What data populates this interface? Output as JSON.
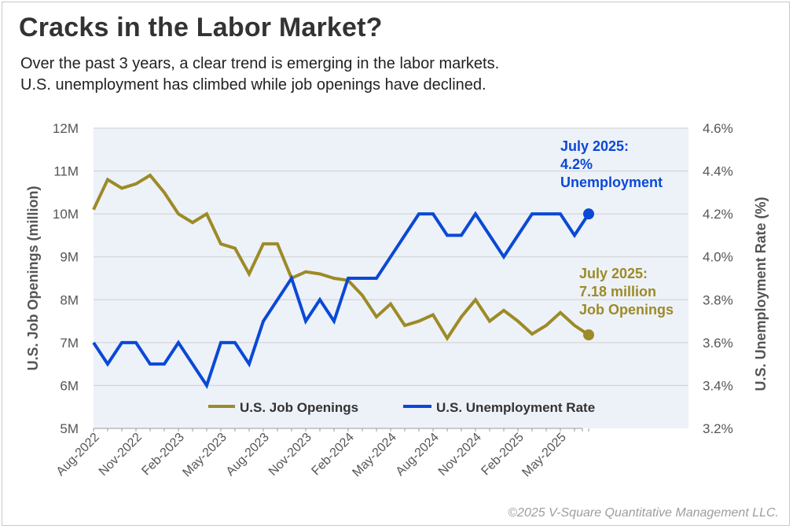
{
  "header": {
    "title": "Cracks in the Labor Market?",
    "subtitle_lines": [
      "Over the past 3 years, a clear trend is emerging in the labor markets.",
      "U.S. unemployment has climbed while job openings have declined."
    ]
  },
  "footer": {
    "copyright": "©2025 V-Square Quantitative Management LLC."
  },
  "colors": {
    "job_openings": "#9c8b26",
    "unemployment": "#0a49d6",
    "plot_background": "#edf1f8",
    "grid": "#cfcfcf",
    "axis_text": "#555555"
  },
  "chart_data": {
    "type": "line",
    "x_tick_labels": [
      "Aug-2022",
      "Nov-2022",
      "Feb-2023",
      "May-2023",
      "Aug-2023",
      "Nov-2023",
      "Feb-2024",
      "May-2024",
      "Aug-2024",
      "Nov-2024",
      "Feb-2025",
      "May-2025"
    ],
    "x": [
      "Aug-2022",
      "Sep-2022",
      "Oct-2022",
      "Nov-2022",
      "Dec-2022",
      "Jan-2023",
      "Feb-2023",
      "Mar-2023",
      "Apr-2023",
      "May-2023",
      "Jun-2023",
      "Jul-2023",
      "Aug-2023",
      "Sep-2023",
      "Oct-2023",
      "Nov-2023",
      "Dec-2023",
      "Jan-2024",
      "Feb-2024",
      "Mar-2024",
      "Apr-2024",
      "May-2024",
      "Jun-2024",
      "Jul-2024",
      "Aug-2024",
      "Sep-2024",
      "Oct-2024",
      "Nov-2024",
      "Dec-2024",
      "Jan-2025",
      "Feb-2025",
      "Mar-2025",
      "Apr-2025",
      "May-2025",
      "Jun-2025",
      "Jul-2025"
    ],
    "series": [
      {
        "name": "U.S. Job Openings",
        "axis": "left",
        "values": [
          10.1,
          10.8,
          10.6,
          10.7,
          10.9,
          10.5,
          10.0,
          9.8,
          10.0,
          9.3,
          9.2,
          8.6,
          9.3,
          9.3,
          8.5,
          8.65,
          8.6,
          8.5,
          8.45,
          8.1,
          7.6,
          7.9,
          7.4,
          7.5,
          7.65,
          7.1,
          7.6,
          8.0,
          7.5,
          7.75,
          7.5,
          7.2,
          7.4,
          7.7,
          7.4,
          7.18
        ]
      },
      {
        "name": "U.S. Unemployment Rate",
        "axis": "right",
        "values": [
          3.6,
          3.5,
          3.6,
          3.6,
          3.5,
          3.5,
          3.6,
          3.5,
          3.4,
          3.6,
          3.6,
          3.5,
          3.7,
          3.8,
          3.9,
          3.7,
          3.8,
          3.7,
          3.9,
          3.9,
          3.9,
          4.0,
          4.1,
          4.2,
          4.2,
          4.1,
          4.1,
          4.2,
          4.1,
          4.0,
          4.1,
          4.2,
          4.2,
          4.2,
          4.1,
          4.2
        ]
      }
    ],
    "left_axis": {
      "label": "U.S. Job Openings (million)",
      "min": 5,
      "max": 12,
      "ticks": [
        "5M",
        "6M",
        "7M",
        "8M",
        "9M",
        "10M",
        "11M",
        "12M"
      ]
    },
    "right_axis": {
      "label": "U.S. Unemployment Rate (%)",
      "min": 3.2,
      "max": 4.6,
      "ticks": [
        "3.2%",
        "3.4%",
        "3.6%",
        "3.8%",
        "4.0%",
        "4.2%",
        "4.4%",
        "4.6%"
      ]
    },
    "legend_position": "bottom-center inside plot",
    "grid": true,
    "annotations": [
      {
        "series": "U.S. Unemployment Rate",
        "lines": [
          "July 2025:",
          "4.2%",
          "Unemployment"
        ]
      },
      {
        "series": "U.S. Job Openings",
        "lines": [
          "July 2025:",
          "7.18 million",
          "Job Openings"
        ]
      }
    ]
  }
}
